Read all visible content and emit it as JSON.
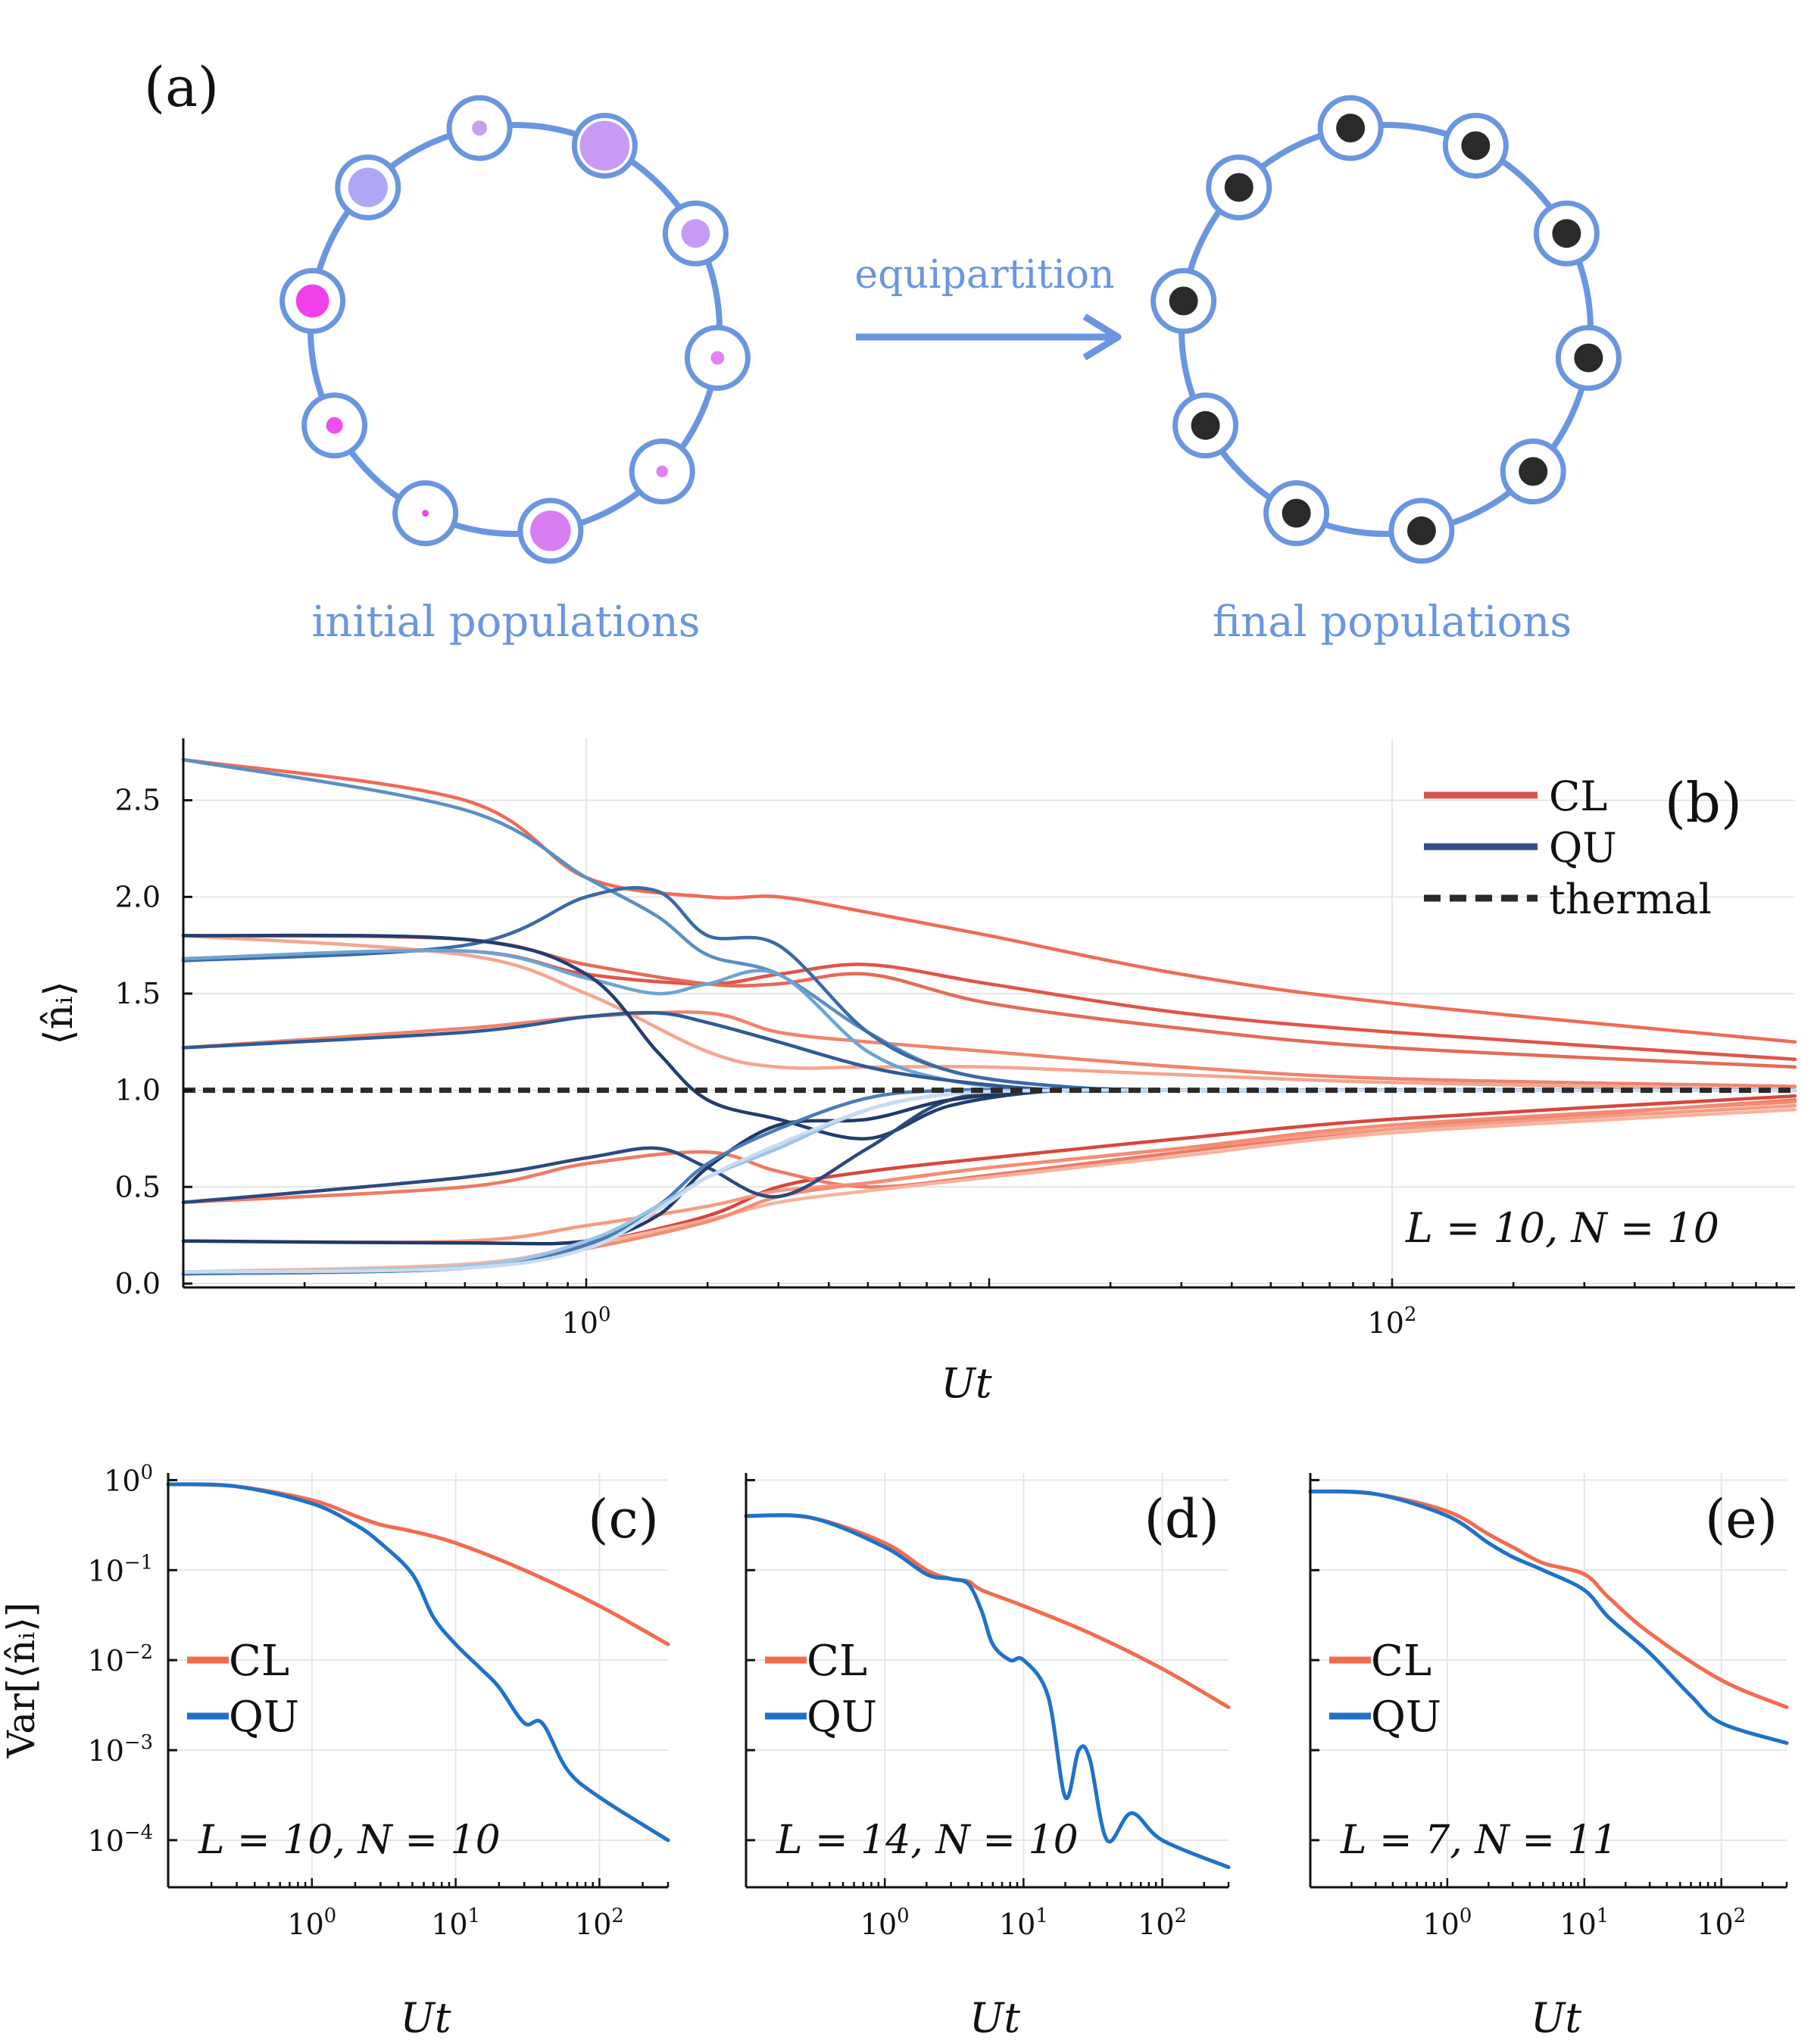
{
  "panel_a": {
    "label": "(a)",
    "arrow_label": "equipartition",
    "caption_initial": "initial populations",
    "caption_final": "final populations",
    "colors": {
      "ring": "#6a96e0",
      "final_dot": "#2a2a2a"
    },
    "initial_populations": [
      {
        "n": 0.25,
        "color": "#c8a0f0"
      },
      {
        "n": 2.7,
        "color": "#c79bf5"
      },
      {
        "n": 0.9,
        "color": "#c79bf5"
      },
      {
        "n": 0.2,
        "color": "#e77ff5"
      },
      {
        "n": 0.15,
        "color": "#e37ef3"
      },
      {
        "n": 1.8,
        "color": "#d97ef2"
      },
      {
        "n": 0.05,
        "color": "#e04de8"
      },
      {
        "n": 0.3,
        "color": "#ef4ff0"
      },
      {
        "n": 1.2,
        "color": "#f040ea"
      },
      {
        "n": 1.7,
        "color": "#b0a6f6"
      }
    ],
    "final_populations": [
      1,
      1,
      1,
      1,
      1,
      1,
      1,
      1,
      1,
      1
    ]
  },
  "chart_data": [
    {
      "id": "b",
      "panel_label": "(b)",
      "type": "line",
      "xscale": "log",
      "xlim": [
        0.1,
        1000
      ],
      "ylim": [
        -0.02,
        2.82
      ],
      "xticks": [
        {
          "value": 1,
          "label": "10^0"
        },
        {
          "value": 100,
          "label": "10^2"
        }
      ],
      "yticks": [
        {
          "value": 0.0,
          "label": "0.0"
        },
        {
          "value": 0.5,
          "label": "0.5"
        },
        {
          "value": 1.0,
          "label": "1.0"
        },
        {
          "value": 1.5,
          "label": "1.5"
        },
        {
          "value": 2.0,
          "label": "2.0"
        },
        {
          "value": 2.5,
          "label": "2.5"
        }
      ],
      "xlabel": "Ut",
      "ylabel": "⟨n̂ᵢ⟩",
      "annotation": "L = 10,    N = 10",
      "legend": [
        {
          "label": "CL",
          "color": "#d9534f",
          "dash": "solid"
        },
        {
          "label": "QU",
          "color": "#2f4f86",
          "dash": "solid"
        },
        {
          "label": "thermal",
          "color": "#2a2a2a",
          "dash": "dashed"
        }
      ],
      "thermal": 1.0,
      "series": [
        {
          "name": "CL",
          "color": "#ef6b57",
          "x": [
            0.1,
            0.5,
            1,
            2,
            3,
            5,
            10,
            30,
            100,
            1000
          ],
          "y": [
            2.71,
            2.5,
            2.1,
            2.0,
            2.0,
            1.92,
            1.8,
            1.6,
            1.45,
            1.25
          ]
        },
        {
          "name": "CL",
          "color": "#e0544a",
          "x": [
            0.1,
            0.5,
            1,
            2,
            3,
            5,
            10,
            30,
            100,
            1000
          ],
          "y": [
            1.68,
            1.72,
            1.6,
            1.55,
            1.6,
            1.65,
            1.55,
            1.4,
            1.3,
            1.16
          ]
        },
        {
          "name": "CL",
          "color": "#e56a58",
          "x": [
            0.1,
            0.5,
            1,
            2,
            3,
            5,
            10,
            30,
            100,
            1000
          ],
          "y": [
            1.8,
            1.78,
            1.65,
            1.55,
            1.55,
            1.6,
            1.45,
            1.32,
            1.22,
            1.12
          ]
        },
        {
          "name": "CL",
          "color": "#f0836c",
          "x": [
            0.1,
            0.5,
            1,
            2,
            3,
            5,
            10,
            30,
            100,
            1000
          ],
          "y": [
            1.22,
            1.32,
            1.38,
            1.4,
            1.3,
            1.25,
            1.2,
            1.12,
            1.06,
            1.02
          ]
        },
        {
          "name": "CL",
          "color": "#f5a590",
          "x": [
            0.1,
            0.5,
            1,
            2,
            3,
            5,
            10,
            30,
            100,
            1000
          ],
          "y": [
            1.8,
            1.7,
            1.5,
            1.2,
            1.12,
            1.12,
            1.12,
            1.08,
            1.04,
            1.0
          ]
        },
        {
          "name": "CL",
          "color": "#d8463f",
          "x": [
            0.1,
            0.5,
            1,
            2,
            3,
            5,
            10,
            30,
            100,
            1000
          ],
          "y": [
            0.05,
            0.08,
            0.2,
            0.35,
            0.5,
            0.58,
            0.65,
            0.75,
            0.85,
            0.97
          ]
        },
        {
          "name": "CL",
          "color": "#ef7a64",
          "x": [
            0.1,
            0.5,
            1,
            2,
            3,
            5,
            10,
            30,
            100,
            1000
          ],
          "y": [
            0.42,
            0.5,
            0.62,
            0.68,
            0.58,
            0.5,
            0.56,
            0.68,
            0.8,
            0.95
          ]
        },
        {
          "name": "CL",
          "color": "#f59b82",
          "x": [
            0.1,
            0.5,
            1,
            2,
            3,
            5,
            10,
            30,
            100,
            1000
          ],
          "y": [
            0.22,
            0.22,
            0.3,
            0.4,
            0.48,
            0.52,
            0.6,
            0.7,
            0.8,
            0.92
          ]
        },
        {
          "name": "CL",
          "color": "#f7b39e",
          "x": [
            0.1,
            0.5,
            1,
            2,
            3,
            5,
            10,
            30,
            100,
            1000
          ],
          "y": [
            0.06,
            0.1,
            0.2,
            0.33,
            0.42,
            0.48,
            0.55,
            0.66,
            0.78,
            0.9
          ]
        },
        {
          "name": "CL",
          "color": "#f28d74",
          "x": [
            0.1,
            0.5,
            1,
            2,
            3,
            5,
            10,
            30,
            100,
            1000
          ],
          "y": [
            0.05,
            0.08,
            0.18,
            0.32,
            0.45,
            0.52,
            0.6,
            0.7,
            0.82,
            0.94
          ]
        },
        {
          "name": "QU",
          "color": "#5b8ec4",
          "x": [
            0.1,
            0.5,
            1,
            1.5,
            2,
            3,
            5,
            8,
            15,
            30,
            100,
            1000
          ],
          "y": [
            2.71,
            2.45,
            2.1,
            1.9,
            1.7,
            1.6,
            1.3,
            1.1,
            1.02,
            1.0,
            1.0,
            1.0
          ]
        },
        {
          "name": "QU",
          "color": "#3a6aa6",
          "x": [
            0.1,
            0.5,
            1,
            1.5,
            2,
            3,
            5,
            8,
            15,
            30,
            100,
            1000
          ],
          "y": [
            1.67,
            1.75,
            2.0,
            2.03,
            1.8,
            1.75,
            1.3,
            1.1,
            1.02,
            1.0,
            1.0,
            1.0
          ]
        },
        {
          "name": "QU",
          "color": "#6aa4d4",
          "x": [
            0.1,
            0.5,
            1,
            1.5,
            2,
            3,
            5,
            8,
            15,
            30,
            100,
            1000
          ],
          "y": [
            1.68,
            1.72,
            1.58,
            1.5,
            1.55,
            1.6,
            1.2,
            1.05,
            1.0,
            1.0,
            1.0,
            1.0
          ]
        },
        {
          "name": "QU",
          "color": "#2f5a96",
          "x": [
            0.1,
            0.5,
            1,
            1.5,
            2,
            3,
            5,
            8,
            15,
            30,
            100,
            1000
          ],
          "y": [
            1.22,
            1.3,
            1.38,
            1.4,
            1.35,
            1.25,
            1.12,
            1.05,
            1.0,
            1.0,
            1.0,
            1.0
          ]
        },
        {
          "name": "QU",
          "color": "#223e6e",
          "x": [
            0.1,
            0.5,
            1,
            1.5,
            2,
            3,
            5,
            8,
            15,
            30,
            100,
            1000
          ],
          "y": [
            1.8,
            1.78,
            1.6,
            1.2,
            0.95,
            0.85,
            0.75,
            0.92,
            1.0,
            1.0,
            1.0,
            1.0
          ]
        },
        {
          "name": "QU",
          "color": "#2a4a80",
          "x": [
            0.1,
            0.5,
            1,
            1.5,
            2,
            3,
            5,
            8,
            15,
            30,
            100,
            1000
          ],
          "y": [
            0.42,
            0.55,
            0.65,
            0.7,
            0.6,
            0.45,
            0.7,
            0.95,
            1.0,
            1.0,
            1.0,
            1.0
          ]
        },
        {
          "name": "QU",
          "color": "#1f3a68",
          "x": [
            0.1,
            0.5,
            1,
            1.5,
            2,
            3,
            5,
            8,
            15,
            30,
            100,
            1000
          ],
          "y": [
            0.22,
            0.21,
            0.22,
            0.35,
            0.6,
            0.82,
            0.85,
            0.95,
            1.0,
            1.0,
            1.0,
            1.0
          ]
        },
        {
          "name": "QU",
          "color": "#4a7cb8",
          "x": [
            0.1,
            0.5,
            1,
            1.5,
            2,
            3,
            5,
            8,
            15,
            30,
            100,
            1000
          ],
          "y": [
            0.05,
            0.08,
            0.2,
            0.4,
            0.62,
            0.8,
            0.96,
            1.0,
            1.0,
            1.0,
            1.0,
            1.0
          ]
        },
        {
          "name": "QU",
          "color": "#9cc4e6",
          "x": [
            0.1,
            0.5,
            1,
            1.5,
            2,
            3,
            5,
            8,
            15,
            30,
            100,
            1000
          ],
          "y": [
            0.06,
            0.09,
            0.22,
            0.4,
            0.55,
            0.7,
            0.9,
            0.98,
            1.0,
            1.0,
            1.0,
            1.0
          ]
        },
        {
          "name": "QU",
          "color": "#c9dcef",
          "x": [
            0.1,
            0.5,
            1,
            1.5,
            2,
            3,
            5,
            8,
            15,
            30,
            100,
            1000
          ],
          "y": [
            0.06,
            0.08,
            0.18,
            0.38,
            0.55,
            0.72,
            0.9,
            0.98,
            1.0,
            1.0,
            1.0,
            1.0
          ]
        }
      ]
    },
    {
      "id": "c",
      "panel_label": "(c)",
      "type": "line",
      "xscale": "log",
      "yscale": "log",
      "xlim": [
        0.1,
        300
      ],
      "ylim": [
        3e-05,
        1.2
      ],
      "xticks": [
        {
          "value": 1,
          "label": "10^0"
        },
        {
          "value": 10,
          "label": "10^1"
        },
        {
          "value": 100,
          "label": "10^2"
        }
      ],
      "yticks": [
        {
          "value": 1,
          "label": "10^0"
        },
        {
          "value": 0.1,
          "label": "10^-1"
        },
        {
          "value": 0.01,
          "label": "10^-2"
        },
        {
          "value": 0.001,
          "label": "10^-3"
        },
        {
          "value": 0.0001,
          "label": "10^-4"
        }
      ],
      "xlabel": "Ut",
      "ylabel": "Var[⟨n̂ᵢ⟩]",
      "annotation": "L = 10,    N = 10",
      "legend": [
        {
          "label": "CL",
          "color": "#f26b4f"
        },
        {
          "label": "QU",
          "color": "#1f72c8"
        }
      ],
      "series": [
        {
          "name": "CL",
          "color": "#f26b4f",
          "x": [
            0.1,
            0.3,
            1,
            2,
            3,
            5,
            10,
            30,
            100,
            300
          ],
          "y": [
            0.9,
            0.85,
            0.6,
            0.4,
            0.32,
            0.27,
            0.2,
            0.1,
            0.04,
            0.015
          ]
        },
        {
          "name": "QU",
          "color": "#1f72c8",
          "x": [
            0.1,
            0.3,
            1,
            2,
            3,
            5,
            7,
            10,
            15,
            20,
            30,
            40,
            60,
            100,
            300
          ],
          "y": [
            0.9,
            0.85,
            0.55,
            0.32,
            0.2,
            0.09,
            0.03,
            0.015,
            0.008,
            0.005,
            0.002,
            0.002,
            0.0006,
            0.0003,
            0.0001
          ]
        }
      ]
    },
    {
      "id": "d",
      "panel_label": "(d)",
      "type": "line",
      "xscale": "log",
      "yscale": "log",
      "xlim": [
        0.1,
        300
      ],
      "ylim": [
        3e-05,
        1.2
      ],
      "xticks": [
        {
          "value": 1,
          "label": "10^0"
        },
        {
          "value": 10,
          "label": "10^1"
        },
        {
          "value": 100,
          "label": "10^2"
        }
      ],
      "yticks": [
        {
          "value": 1,
          "label": ""
        },
        {
          "value": 0.1,
          "label": ""
        },
        {
          "value": 0.01,
          "label": ""
        },
        {
          "value": 0.001,
          "label": ""
        },
        {
          "value": 0.0001,
          "label": ""
        }
      ],
      "xlabel": "Ut",
      "annotation": "L = 14,    N = 10",
      "legend": [
        {
          "label": "CL",
          "color": "#f26b4f"
        },
        {
          "label": "QU",
          "color": "#1f72c8"
        }
      ],
      "series": [
        {
          "name": "CL",
          "color": "#f26b4f",
          "x": [
            0.1,
            0.3,
            1,
            2,
            3,
            4,
            5,
            10,
            30,
            100,
            300
          ],
          "y": [
            0.4,
            0.38,
            0.2,
            0.1,
            0.08,
            0.075,
            0.06,
            0.04,
            0.02,
            0.008,
            0.003
          ]
        },
        {
          "name": "QU",
          "color": "#1f72c8",
          "x": [
            0.1,
            0.3,
            1,
            2,
            3,
            4,
            5,
            6,
            8,
            10,
            15,
            20,
            25,
            30,
            40,
            60,
            100,
            300
          ],
          "y": [
            0.4,
            0.38,
            0.18,
            0.09,
            0.08,
            0.07,
            0.035,
            0.015,
            0.01,
            0.01,
            0.004,
            0.0003,
            0.001,
            0.0008,
            0.0001,
            0.0002,
            0.0001,
            5e-05
          ]
        }
      ]
    },
    {
      "id": "e",
      "panel_label": "(e)",
      "type": "line",
      "xscale": "log",
      "yscale": "log",
      "xlim": [
        0.1,
        300
      ],
      "ylim": [
        3e-05,
        1.2
      ],
      "xticks": [
        {
          "value": 1,
          "label": "10^0"
        },
        {
          "value": 10,
          "label": "10^1"
        },
        {
          "value": 100,
          "label": "10^2"
        }
      ],
      "yticks": [
        {
          "value": 1,
          "label": ""
        },
        {
          "value": 0.1,
          "label": ""
        },
        {
          "value": 0.01,
          "label": ""
        },
        {
          "value": 0.001,
          "label": ""
        },
        {
          "value": 0.0001,
          "label": ""
        }
      ],
      "xlabel": "Ut",
      "annotation": "L = 7,    N = 11",
      "legend": [
        {
          "label": "CL",
          "color": "#f26b4f"
        },
        {
          "label": "QU",
          "color": "#1f72c8"
        }
      ],
      "series": [
        {
          "name": "CL",
          "color": "#f26b4f",
          "x": [
            0.1,
            0.3,
            1,
            2,
            3,
            5,
            10,
            15,
            30,
            100,
            300
          ],
          "y": [
            0.75,
            0.7,
            0.45,
            0.25,
            0.18,
            0.12,
            0.09,
            0.05,
            0.02,
            0.006,
            0.003
          ]
        },
        {
          "name": "QU",
          "color": "#1f72c8",
          "x": [
            0.1,
            0.3,
            1,
            2,
            3,
            5,
            10,
            15,
            30,
            60,
            100,
            300
          ],
          "y": [
            0.75,
            0.7,
            0.4,
            0.2,
            0.14,
            0.1,
            0.06,
            0.03,
            0.012,
            0.004,
            0.002,
            0.0012
          ]
        }
      ]
    }
  ]
}
